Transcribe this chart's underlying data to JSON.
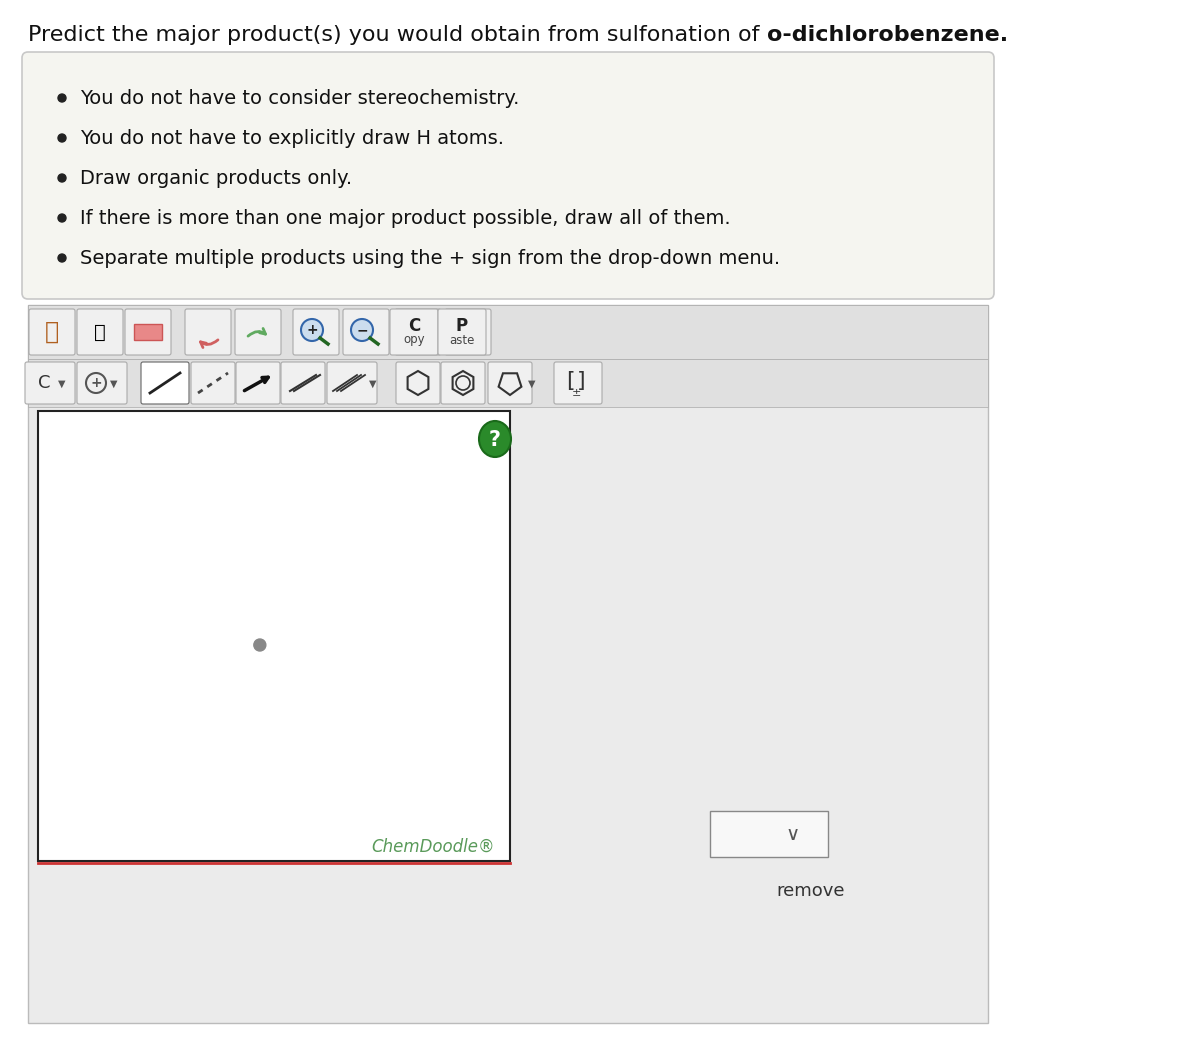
{
  "title_normal": "Predict the major product(s) you would obtain from sulfonation of ",
  "title_bold": "o-dichlorobenzene",
  "title_period": ".",
  "title_fontsize": 16,
  "bg_color": "#ffffff",
  "instruction_box_color": "#f5f5f0",
  "instruction_box_border": "#c8c8c8",
  "bullet_points": [
    "You do not have to consider stereochemistry.",
    "You do not have to explicitly draw H atoms.",
    "Draw organic products only.",
    "If there is more than one major product possible, draw all of them.",
    "Separate multiple products using the + sign from the drop-down menu."
  ],
  "bullet_fontsize": 14,
  "chemdoodle_color": "#5a9a5a",
  "chemdoodle_text": "ChemDoodle®",
  "remove_text": "remove",
  "canvas_bg": "#ffffff",
  "canvas_border": "#222222",
  "outer_box_bg": "#ebebeb",
  "outer_box_border": "#bbbbbb",
  "toolbar1_bg": "#e0e0e0",
  "toolbar2_bg": "#e0e0e0",
  "btn_color": "#f0f0f0",
  "btn_border": "#aaaaaa"
}
